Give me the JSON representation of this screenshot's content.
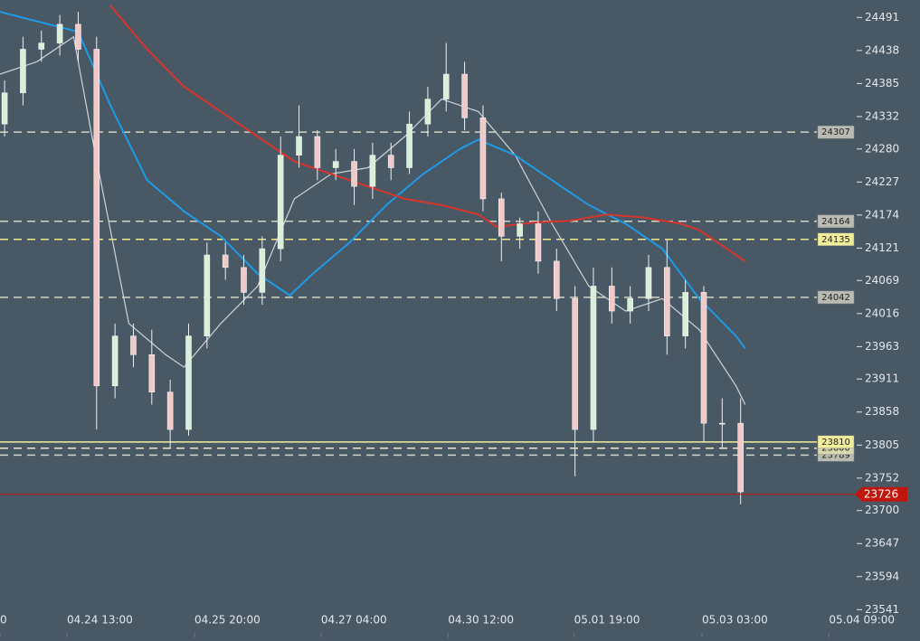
{
  "chart_data": {
    "type": "candlestick",
    "x": [
      0.5,
      2.5,
      4.5,
      6.5,
      8.5,
      10.5,
      12.5,
      14.5,
      16.5,
      18.5,
      20.5,
      22.5,
      24.5,
      26.5,
      28.5,
      30.5,
      32.5,
      34.5,
      36.5,
      38.5,
      40.5,
      42.5,
      44.5,
      46.5,
      48.5,
      50.5,
      52.5,
      54.5,
      56.5,
      58.5,
      60.5,
      62.5,
      64.5,
      66.5,
      68.5,
      70.5,
      72.5,
      74.5,
      76.5,
      78.5,
      80.5
    ],
    "open": [
      24320,
      24370,
      24440,
      24450,
      24480,
      24440,
      23900,
      23980,
      23950,
      23890,
      23830,
      23980,
      24110,
      24090,
      24050,
      24120,
      24270,
      24300,
      24250,
      24260,
      24220,
      24270,
      24250,
      24320,
      24360,
      24400,
      24330,
      24200,
      24140,
      24160,
      24100,
      24040,
      23830,
      24060,
      24020,
      24040,
      24090,
      23980,
      24050,
      23840,
      23840
    ],
    "high": [
      24390,
      24460,
      24470,
      24495,
      24500,
      24460,
      24000,
      24000,
      23990,
      23910,
      24000,
      24130,
      24130,
      24110,
      24140,
      24300,
      24350,
      24310,
      24280,
      24280,
      24290,
      24290,
      24340,
      24380,
      24450,
      24420,
      24350,
      24210,
      24170,
      24180,
      24120,
      24060,
      24090,
      24090,
      24060,
      24110,
      24135,
      24070,
      24060,
      23880,
      23880
    ],
    "low": [
      24300,
      24350,
      24420,
      24430,
      24420,
      23830,
      23880,
      23930,
      23870,
      23800,
      23820,
      23960,
      24070,
      24030,
      24030,
      24100,
      24250,
      24230,
      24230,
      24190,
      24200,
      24230,
      24240,
      24300,
      24340,
      24310,
      24180,
      24100,
      24120,
      24080,
      24020,
      23755,
      23810,
      24000,
      24000,
      24020,
      23950,
      23960,
      23810,
      23800,
      23710
    ],
    "close": [
      24370,
      24440,
      24450,
      24480,
      24440,
      23900,
      23980,
      23950,
      23890,
      23830,
      23980,
      24110,
      24090,
      24050,
      24120,
      24270,
      24300,
      24250,
      24260,
      24220,
      24270,
      24250,
      24320,
      24360,
      24400,
      24330,
      24200,
      24140,
      24160,
      24100,
      24040,
      23830,
      24060,
      24020,
      24040,
      24090,
      23980,
      24050,
      23840,
      23840,
      23730
    ],
    "up_color": "#d9efd9",
    "down_color": "#f2c9c9",
    "lines": [
      {
        "color": "#d0d4d8",
        "x": [
          0,
          4,
          8,
          10,
          14,
          18,
          20,
          24,
          28,
          32,
          36,
          40,
          44,
          48,
          52,
          56,
          60,
          64,
          68,
          72,
          76,
          80,
          81
        ],
        "values": [
          24400,
          24420,
          24460,
          24300,
          24000,
          23950,
          23930,
          24000,
          24060,
          24200,
          24240,
          24250,
          24300,
          24360,
          24340,
          24270,
          24160,
          24060,
          24020,
          24040,
          23990,
          23900,
          23870
        ]
      },
      {
        "color": "#1e9be8",
        "x": [
          0,
          8.5,
          12,
          16,
          20,
          24,
          28,
          31.5,
          34,
          38,
          42,
          46,
          50,
          52,
          56,
          60,
          64,
          68,
          72,
          76,
          80,
          81
        ],
        "values": [
          24500,
          24468,
          24350,
          24230,
          24180,
          24140,
          24080,
          24045,
          24080,
          24130,
          24190,
          24240,
          24280,
          24295,
          24270,
          24230,
          24190,
          24160,
          24120,
          24040,
          23980,
          23960
        ]
      },
      {
        "color": "#d9342b",
        "x": [
          12,
          16,
          20,
          24,
          28,
          32,
          36,
          40,
          44,
          48,
          52,
          54,
          58,
          62,
          66,
          70,
          74,
          76,
          79,
          81
        ],
        "values": [
          24510,
          24440,
          24380,
          24340,
          24300,
          24260,
          24240,
          24220,
          24200,
          24190,
          24175,
          24155,
          24162,
          24165,
          24175,
          24170,
          24160,
          24150,
          24120,
          24100
        ]
      }
    ],
    "levels": [
      {
        "value": 24307,
        "color": "#d4d4c4",
        "box": "#b9bcb2",
        "dash": true
      },
      {
        "value": 24164,
        "color": "#d4d4c4",
        "box": "#b9bcb2",
        "dash": true
      },
      {
        "value": 24135,
        "color": "#ece88a",
        "box": "#f2ef9a",
        "dash": true
      },
      {
        "value": 24042,
        "color": "#d4d4c4",
        "box": "#b9bcb2",
        "dash": true
      },
      {
        "value": 23789,
        "color": "#d4d4c4",
        "box": "#b9bcb2",
        "dash": true
      },
      {
        "value": 23800,
        "color": "#ece8c8",
        "box": "#d9d8b0",
        "dash": true
      },
      {
        "value": 23810,
        "color": "#f2ef9a",
        "box": "#f2ef9a",
        "dash": false
      }
    ],
    "current": {
      "value": 23726,
      "color": "#c0160e"
    },
    "xlim": [
      0,
      100
    ],
    "ylim": [
      23511,
      24519
    ],
    "xticks": [
      {
        "value": 0,
        "label": "0"
      },
      {
        "value": 7.28,
        "label": "04.24 13:00"
      },
      {
        "value": 21.14,
        "label": "04.25 20:00"
      },
      {
        "value": 34.9,
        "label": "04.27 04:00"
      },
      {
        "value": 48.7,
        "label": "04.30 12:00"
      },
      {
        "value": 62.4,
        "label": "05.01 19:00"
      },
      {
        "value": 76.3,
        "label": "05.03 03:00"
      },
      {
        "value": 90.1,
        "label": "05.04 09:00"
      }
    ],
    "yticks": [
      24491,
      24438,
      24385,
      24332,
      24280,
      24227,
      24174,
      24121,
      24069,
      24016,
      23963,
      23911,
      23858,
      23805,
      23752,
      23700,
      23647,
      23594,
      23541
    ]
  }
}
